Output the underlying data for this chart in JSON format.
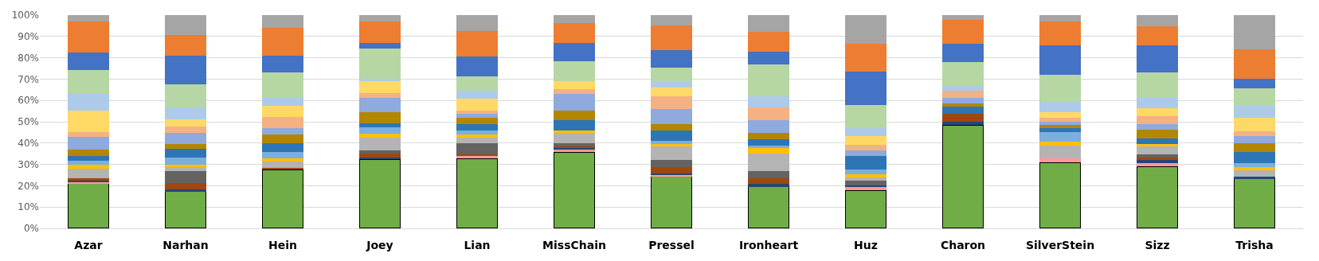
{
  "chart_data": {
    "type": "bar",
    "stacked": true,
    "grid": "y",
    "categories": [
      "Azar",
      "Narhan",
      "Hein",
      "Joey",
      "Lian",
      "MissChain",
      "Pressel",
      "Ironheart",
      "Huz",
      "Charon",
      "SilverStein",
      "Sizz",
      "Trisha"
    ],
    "ylim": [
      0,
      100
    ],
    "yticks": [
      {
        "value": 0,
        "label": "0%"
      },
      {
        "value": 10,
        "label": "10%"
      },
      {
        "value": 20,
        "label": "20%"
      },
      {
        "value": 30,
        "label": "30%"
      },
      {
        "value": 40,
        "label": "40%"
      },
      {
        "value": 50,
        "label": "50%"
      },
      {
        "value": 60,
        "label": "60%"
      },
      {
        "value": 70,
        "label": "70%"
      },
      {
        "value": 80,
        "label": "80%"
      },
      {
        "value": 90,
        "label": "90%"
      },
      {
        "value": 100,
        "label": "100%"
      }
    ],
    "series": [
      {
        "color": "#70ad47",
        "values": [
          21.2,
          17.5,
          27.7,
          32.5,
          32.9,
          35.8,
          24.4,
          19.5,
          18,
          48.6,
          31,
          29.1,
          23.3
        ]
      },
      {
        "color": "#ff9999",
        "values": [
          0.6,
          0,
          0,
          0,
          1.1,
          1.3,
          0.6,
          0,
          1.5,
          0,
          1.7,
          1.4,
          0
        ]
      },
      {
        "color": "#264478",
        "values": [
          0.6,
          0.7,
          0,
          0.8,
          0,
          0.6,
          0.8,
          1.4,
          0.5,
          1.3,
          0,
          1.5,
          1.1
        ]
      },
      {
        "color": "#9e480e",
        "values": [
          1.0,
          3.0,
          0.8,
          1.6,
          0.6,
          0.7,
          3.1,
          2.5,
          0,
          3.7,
          0,
          1.1,
          0
        ]
      },
      {
        "color": "#636363",
        "values": [
          0,
          5.5,
          0,
          1.7,
          5.5,
          1.5,
          3.2,
          3.4,
          2.5,
          0,
          0,
          1.6,
          0
        ]
      },
      {
        "color": "#b4b4b4",
        "values": [
          4.7,
          2.1,
          2.9,
          5.9,
          2.3,
          5,
          6.6,
          8.4,
          1.5,
          0,
          6.2,
          3.6,
          3
        ]
      },
      {
        "color": "#ffc000",
        "values": [
          1.8,
          1.0,
          1.5,
          2,
          1.5,
          1,
          0.7,
          2.6,
          1.5,
          0,
          1.8,
          1.4,
          1.3
        ]
      },
      {
        "color": "#7cafdd",
        "values": [
          2,
          3.4,
          3,
          2.9,
          2,
          0,
          1.5,
          1,
          2,
          0,
          4.3,
          0,
          2
        ]
      },
      {
        "color": "#2e75b6",
        "values": [
          2,
          4,
          4,
          2,
          3,
          5,
          5,
          3,
          6.5,
          3.5,
          2,
          2.5,
          5.3
        ]
      },
      {
        "color": "#b38600",
        "values": [
          3,
          2.5,
          4,
          5,
          3,
          4.5,
          3,
          3,
          0,
          1.5,
          1.5,
          4,
          4
        ]
      },
      {
        "color": "#8faadc",
        "values": [
          6,
          5,
          3.3,
          6.9,
          2,
          7.5,
          7,
          6,
          2.7,
          2.5,
          1.4,
          2.5,
          3.3
        ]
      },
      {
        "color": "#f4b183",
        "values": [
          2.4,
          3,
          5,
          2,
          1.3,
          2.5,
          6.2,
          6.1,
          2.6,
          3.6,
          2,
          3.9,
          2.2
        ]
      },
      {
        "color": "#ffd966",
        "values": [
          9.8,
          3.5,
          5.2,
          5.9,
          5.5,
          3.8,
          3.8,
          0,
          4,
          0,
          2.4,
          3.7,
          6.4
        ]
      },
      {
        "color": "#adcbe8",
        "values": [
          8.1,
          5.5,
          4,
          1,
          4,
          0,
          2.8,
          5.2,
          3.7,
          2,
          4.9,
          5.2,
          5.6
        ]
      },
      {
        "color": "#b6d7a3",
        "values": [
          11.2,
          10.9,
          11.7,
          14,
          6.5,
          9,
          6.8,
          14.6,
          10.7,
          11.2,
          12.9,
          11.6,
          8.2
        ]
      },
      {
        "color": "#4472c4",
        "values": [
          8.1,
          13.4,
          7.9,
          2.7,
          9.5,
          8.8,
          8,
          6.3,
          15.7,
          8.7,
          13.9,
          12.9,
          4.4
        ]
      },
      {
        "color": "#ed7d31",
        "values": [
          14.7,
          9.8,
          13,
          10.1,
          11.7,
          9.1,
          11.8,
          9,
          13.2,
          11,
          11,
          8.7,
          13.9
        ]
      },
      {
        "color": "#a5a5a5",
        "values": [
          2.8,
          9.2,
          6,
          3,
          7.6,
          3.9,
          4.7,
          8,
          13.4,
          2.4,
          3,
          5.3,
          16
        ]
      }
    ]
  }
}
